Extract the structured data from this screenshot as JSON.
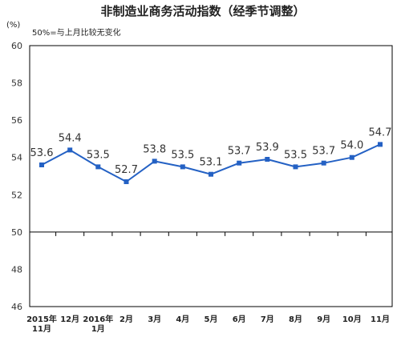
{
  "chart_data": {
    "type": "line",
    "title": "非制造业商务活动指数（经季节调整）",
    "ylabel": "(%)",
    "annotation": "50%=与上月比较无变化",
    "categories": [
      "2015年\n11月",
      "12月",
      "2016年\n1月",
      "2月",
      "3月",
      "4月",
      "5月",
      "6月",
      "7月",
      "8月",
      "9月",
      "10月",
      "11月"
    ],
    "values": [
      53.6,
      54.4,
      53.5,
      52.7,
      53.8,
      53.5,
      53.1,
      53.7,
      53.9,
      53.5,
      53.7,
      54.0,
      54.7
    ],
    "ylim": [
      46,
      60
    ],
    "yticks": [
      60,
      58,
      56,
      54,
      52,
      50,
      48,
      46
    ],
    "reference_line": 50,
    "grid": false,
    "colors": {
      "series": "#2461c4",
      "axis": "#000000"
    }
  }
}
